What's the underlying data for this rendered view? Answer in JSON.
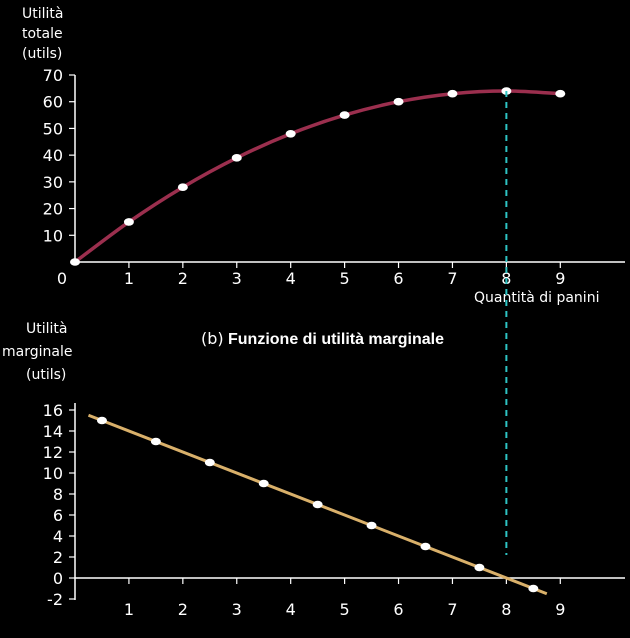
{
  "chart_data": [
    {
      "type": "line",
      "ylabel": [
        "Utilità",
        "totale",
        "(utils)"
      ],
      "xlabel": "Quantità di panini",
      "x_ticks": [
        0,
        1,
        2,
        3,
        4,
        5,
        6,
        7,
        8,
        9
      ],
      "y_ticks": [
        10,
        20,
        30,
        40,
        50,
        60,
        70
      ],
      "xlim": [
        0,
        10.2
      ],
      "ylim": [
        0,
        72
      ],
      "line_color": "#9b2f4e",
      "points": [
        {
          "x": 0,
          "y": 0
        },
        {
          "x": 1,
          "y": 15
        },
        {
          "x": 2,
          "y": 28
        },
        {
          "x": 3,
          "y": 39
        },
        {
          "x": 4,
          "y": 48
        },
        {
          "x": 5,
          "y": 55
        },
        {
          "x": 6,
          "y": 60
        },
        {
          "x": 7,
          "y": 63
        },
        {
          "x": 8,
          "y": 64
        },
        {
          "x": 9,
          "y": 63
        }
      ],
      "reference_line": {
        "x": 8,
        "color": "#2ec4c4",
        "style": "dashed"
      },
      "grid": false
    },
    {
      "type": "line",
      "subtitle_prefix": "(b)",
      "subtitle": "Funzione di utilità marginale",
      "ylabel": [
        "Utilità",
        "marginale",
        "(utils)"
      ],
      "x_ticks": [
        1,
        2,
        3,
        4,
        5,
        6,
        7,
        8,
        9
      ],
      "y_ticks": [
        -2,
        0,
        2,
        4,
        6,
        8,
        10,
        12,
        14,
        16
      ],
      "xlim": [
        0,
        10.2
      ],
      "ylim": [
        -2,
        17
      ],
      "line_color": "#d9b06a",
      "line_range": {
        "x": [
          0.25,
          8.75
        ],
        "y": [
          15.5,
          -1.5
        ]
      },
      "points": [
        {
          "x": 0.5,
          "y": 15
        },
        {
          "x": 1.5,
          "y": 13
        },
        {
          "x": 2.5,
          "y": 11
        },
        {
          "x": 3.5,
          "y": 9
        },
        {
          "x": 4.5,
          "y": 7
        },
        {
          "x": 5.5,
          "y": 5
        },
        {
          "x": 6.5,
          "y": 3
        },
        {
          "x": 7.5,
          "y": 1
        },
        {
          "x": 8.5,
          "y": -1
        }
      ],
      "reference_line": {
        "x": 8,
        "color": "#2ec4c4",
        "style": "dashed"
      },
      "grid": false
    }
  ]
}
